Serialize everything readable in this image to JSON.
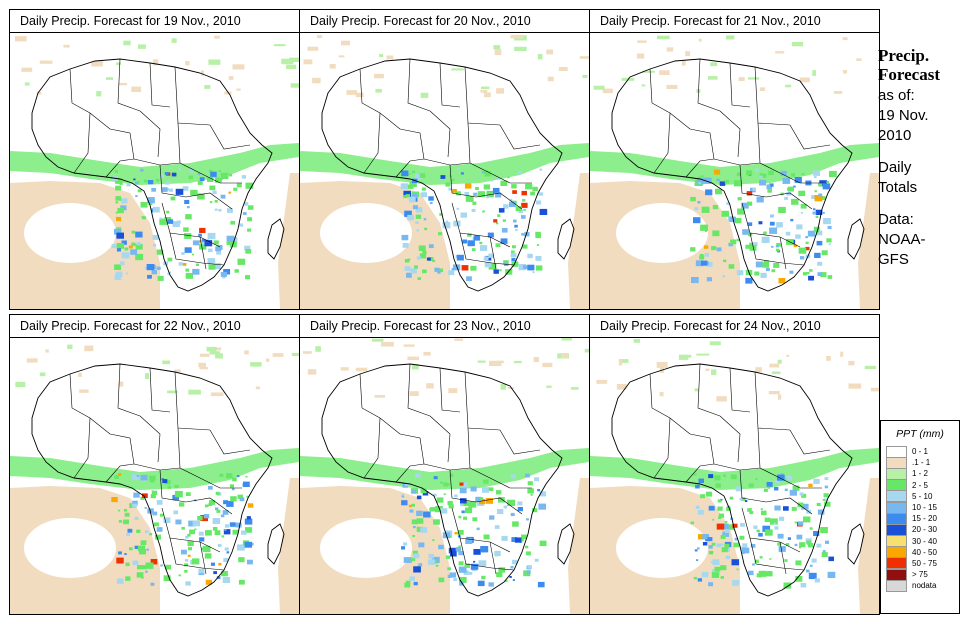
{
  "panels": [
    {
      "title": "Daily Precip. Forecast for  19 Nov., 2010"
    },
    {
      "title": "Daily Precip. Forecast for  20 Nov., 2010"
    },
    {
      "title": "Daily Precip. Forecast for  21 Nov., 2010"
    },
    {
      "title": "Daily Precip. Forecast for  22 Nov., 2010"
    },
    {
      "title": "Daily Precip. Forecast for  23 Nov., 2010"
    },
    {
      "title": "Daily Precip. Forecast for  24 Nov., 2010"
    }
  ],
  "side": {
    "heading1": "Precip.",
    "heading2": "Forecast",
    "asof1": "as of:",
    "asof2": "19 Nov.",
    "asof3": "2010",
    "daily1": "Daily",
    "daily2": "Totals",
    "data1": "Data:",
    "data2": "NOAA-",
    "data3": "GFS"
  },
  "legend": {
    "title": "PPT (mm)",
    "items": [
      {
        "label": "0 - 1",
        "color": "#ffffff"
      },
      {
        "label": ".1 - 1",
        "color": "#f2dcc0"
      },
      {
        "label": "1 - 2",
        "color": "#b8f0a8"
      },
      {
        "label": "2 - 5",
        "color": "#66e866"
      },
      {
        "label": "5 - 10",
        "color": "#a8d8f0"
      },
      {
        "label": "10 - 15",
        "color": "#78b8f0"
      },
      {
        "label": "15 - 20",
        "color": "#3c8cf0"
      },
      {
        "label": "20 - 30",
        "color": "#1850d8"
      },
      {
        "label": "30 - 40",
        "color": "#f8e070"
      },
      {
        "label": "40 - 50",
        "color": "#f8a800"
      },
      {
        "label": "50 - 75",
        "color": "#f03000"
      },
      {
        "label": "> 75",
        "color": "#901010"
      },
      {
        "label": "nodata",
        "color": "#d8d8d8"
      }
    ]
  }
}
